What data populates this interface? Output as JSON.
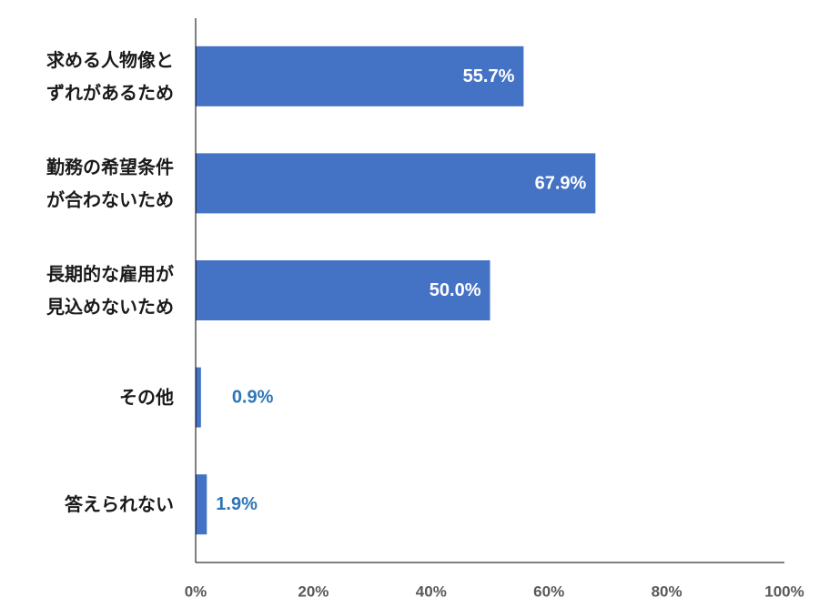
{
  "chart_data": {
    "type": "bar",
    "orientation": "horizontal",
    "categories": [
      [
        "求める人物像と",
        "ずれがあるため"
      ],
      [
        "勤務の希望条件",
        "が合わないため"
      ],
      [
        "長期的な雇用が",
        "見込めないため"
      ],
      [
        "その他"
      ],
      [
        "答えられない"
      ]
    ],
    "values": [
      55.7,
      67.9,
      50.0,
      0.9,
      1.9
    ],
    "value_labels": [
      "55.7%",
      "67.9%",
      "50.0%",
      "0.9%",
      "1.9%"
    ],
    "xlim": [
      0,
      100
    ],
    "x_ticks": [
      0,
      20,
      40,
      60,
      80,
      100
    ],
    "x_tick_labels": [
      "0%",
      "20%",
      "40%",
      "60%",
      "80%",
      "100%"
    ],
    "grid": false,
    "colors": {
      "bar": "#4472C4",
      "label_inside": "#FFFFFF",
      "label_outside": "#2E75B6",
      "axis": "#000000",
      "tick_label": "#595959"
    }
  }
}
